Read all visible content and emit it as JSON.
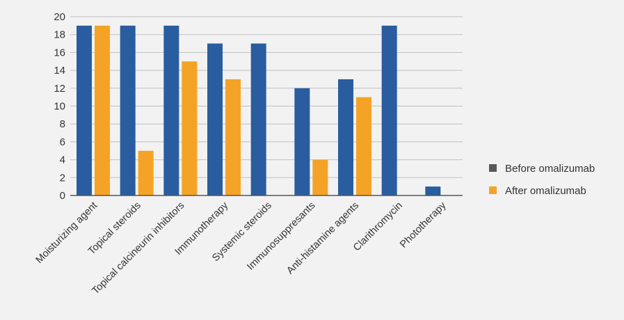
{
  "chart_data": {
    "type": "bar",
    "title": "",
    "xlabel": "",
    "ylabel": "",
    "ylim": [
      0,
      20
    ],
    "yticks": [
      0,
      2,
      4,
      6,
      8,
      10,
      12,
      14,
      16,
      18,
      20
    ],
    "grid": true,
    "legend_position": "right",
    "categories": [
      "Moisturizing agent",
      "Topical steroids",
      "Topical calcineurin inhibitors",
      "Immunotherapy",
      "Systemic steroids",
      "Immunosuppresants",
      "Anti-histamine agents",
      "Clarithromycin",
      "Phototherapy"
    ],
    "series": [
      {
        "name": "Before omalizumab",
        "color": "#2a5d9f",
        "values": [
          19,
          19,
          19,
          17,
          17,
          12,
          13,
          19,
          1
        ]
      },
      {
        "name": "After omalizumab",
        "color": "#f5a326",
        "values": [
          19,
          5,
          15,
          13,
          0,
          4,
          11,
          0,
          0
        ]
      }
    ]
  },
  "legend_swatch_color": "#595959"
}
